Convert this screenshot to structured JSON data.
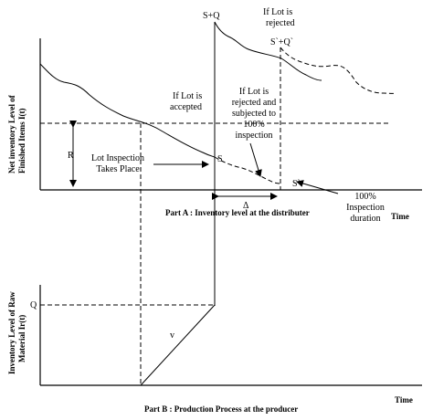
{
  "part_a": {
    "y_axis_label_line1": "Net inventory Level of",
    "y_axis_label_line2": "Finished Items I(t)",
    "caption": "Part A :   Inventory level at the distributer",
    "time_label": "Time",
    "label_R": "R",
    "label_SQ": "S+Q",
    "label_S": "S",
    "label_SQ_prime": "S`+Q`",
    "label_S_prime": "S`",
    "label_delta": "Δ",
    "rejected_top_line1": "If Lot is",
    "rejected_top_line2": "rejected",
    "accepted_line1": "If Lot is",
    "accepted_line2": "accepted",
    "rejected_inspect_lines": [
      "If Lot is",
      "rejected and",
      "subjected to",
      "100%",
      "inspection"
    ],
    "lot_inspection_line1": "Lot Inspection",
    "lot_inspection_line2": "Takes Place",
    "inspection_duration_lines": [
      "100%",
      "Inspection",
      "duration"
    ]
  },
  "part_b": {
    "y_axis_label_line1": "Inventory Level of Raw",
    "y_axis_label_line2": "Material Ir(t)",
    "caption": "Part B : Production Process at the producer",
    "time_label": "Time",
    "label_Q": "Q",
    "label_v": "v"
  }
}
